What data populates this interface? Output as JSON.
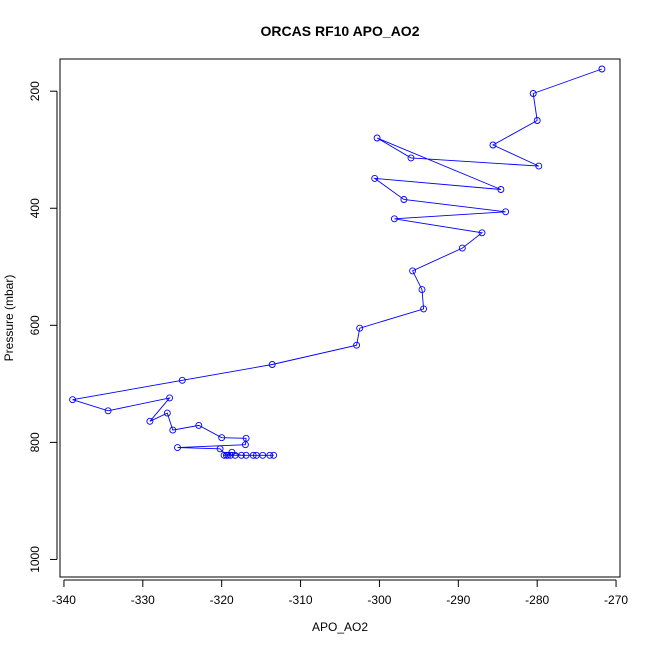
{
  "chart_data": {
    "type": "line",
    "title": "ORCAS RF10 APO_AO2",
    "xlabel": "APO_AO2",
    "ylabel": "Pressure (mbar)",
    "xlim": [
      -340.5,
      -269.5
    ],
    "ylim": [
      1030,
      145
    ],
    "y_reversed": true,
    "x_ticks": [
      -340,
      -330,
      -320,
      -310,
      -300,
      -290,
      -280,
      -270
    ],
    "y_ticks": [
      200,
      400,
      600,
      800,
      1000
    ],
    "series_color": "#0000ff",
    "series": [
      {
        "marker": "open-circle",
        "x": [
          -271.8,
          -280.5,
          -280.0,
          -285.6,
          -279.8,
          -296.0,
          -300.3,
          -284.6,
          -300.6,
          -296.9,
          -284.0,
          -298.1,
          -287.0,
          -289.5,
          -295.8,
          -294.6,
          -294.4,
          -302.5,
          -302.9,
          -313.6,
          -325.0,
          -338.9,
          -334.4,
          -326.6,
          -329.1,
          -326.9,
          -326.2,
          -322.9,
          -320.0,
          -316.9,
          -317.0,
          -325.6,
          -320.2,
          -319.4,
          -318.7,
          -317.5,
          -316.0,
          -314.8,
          -313.9,
          -313.4,
          -315.6,
          -316.9,
          -318.3,
          -319.2,
          -319.7,
          -318.9
        ],
        "y": [
          162,
          204,
          250,
          292,
          328,
          314,
          280,
          368,
          349,
          385,
          406,
          418,
          442,
          468,
          507,
          539,
          572,
          605,
          634,
          667,
          694,
          727,
          746,
          724,
          764,
          750,
          779,
          771,
          792,
          793,
          804,
          809,
          811,
          822,
          817,
          822,
          822,
          822,
          822,
          822,
          822,
          822,
          822,
          822,
          822,
          822
        ]
      }
    ]
  }
}
